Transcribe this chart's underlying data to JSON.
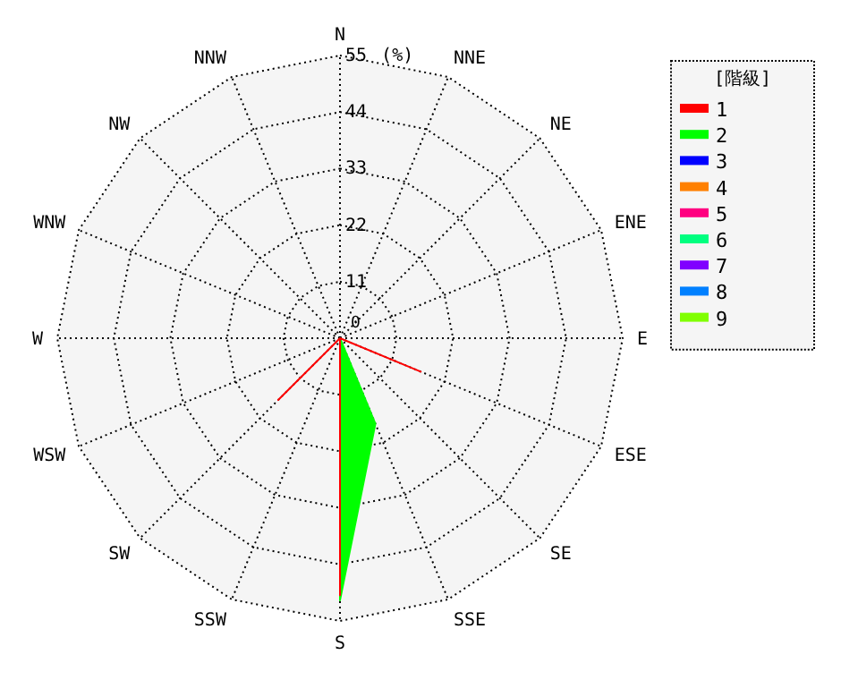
{
  "chart_data": {
    "type": "radar",
    "legend_title": "[階級]",
    "ylabel": "(%)",
    "categories": [
      "N",
      "NNE",
      "NE",
      "ENE",
      "E",
      "ESE",
      "SE",
      "SSE",
      "S",
      "SSW",
      "SW",
      "WSW",
      "W",
      "WNW",
      "NW",
      "NNW"
    ],
    "ylim": [
      0,
      55
    ],
    "yticks": [
      0,
      11,
      22,
      33,
      44,
      55
    ],
    "grid": true,
    "legend": "right",
    "series": [
      {
        "name": "1",
        "color": "#ff0000",
        "values": [
          0,
          0,
          0,
          0,
          0,
          17,
          0,
          0,
          50,
          0,
          17,
          0,
          0,
          0,
          0,
          0
        ]
      },
      {
        "name": "2",
        "color": "#00ff00",
        "values": [
          0,
          0,
          0,
          0,
          0,
          0,
          0,
          18,
          51,
          0,
          0,
          0,
          0,
          0,
          0,
          0
        ]
      },
      {
        "name": "3",
        "color": "#0000ff",
        "values": [
          null,
          null,
          null,
          null,
          null,
          null,
          null,
          null,
          null,
          null,
          null,
          null,
          null,
          null,
          null,
          null
        ]
      },
      {
        "name": "4",
        "color": "#ff8000",
        "values": [
          null,
          null,
          null,
          null,
          null,
          null,
          null,
          null,
          null,
          null,
          null,
          null,
          null,
          null,
          null,
          null
        ]
      },
      {
        "name": "5",
        "color": "#ff0080",
        "values": [
          null,
          null,
          null,
          null,
          null,
          null,
          null,
          null,
          null,
          null,
          null,
          null,
          null,
          null,
          null,
          null
        ]
      },
      {
        "name": "6",
        "color": "#00ff80",
        "values": [
          null,
          null,
          null,
          null,
          null,
          null,
          null,
          null,
          null,
          null,
          null,
          null,
          null,
          null,
          null,
          null
        ]
      },
      {
        "name": "7",
        "color": "#8000ff",
        "values": [
          null,
          null,
          null,
          null,
          null,
          null,
          null,
          null,
          null,
          null,
          null,
          null,
          null,
          null,
          null,
          null
        ]
      },
      {
        "name": "8",
        "color": "#0080ff",
        "values": [
          null,
          null,
          null,
          null,
          null,
          null,
          null,
          null,
          null,
          null,
          null,
          null,
          null,
          null,
          null,
          null
        ]
      },
      {
        "name": "9",
        "color": "#80ff00",
        "values": [
          null,
          null,
          null,
          null,
          null,
          null,
          null,
          null,
          null,
          null,
          null,
          null,
          null,
          null,
          null,
          null
        ]
      }
    ]
  }
}
